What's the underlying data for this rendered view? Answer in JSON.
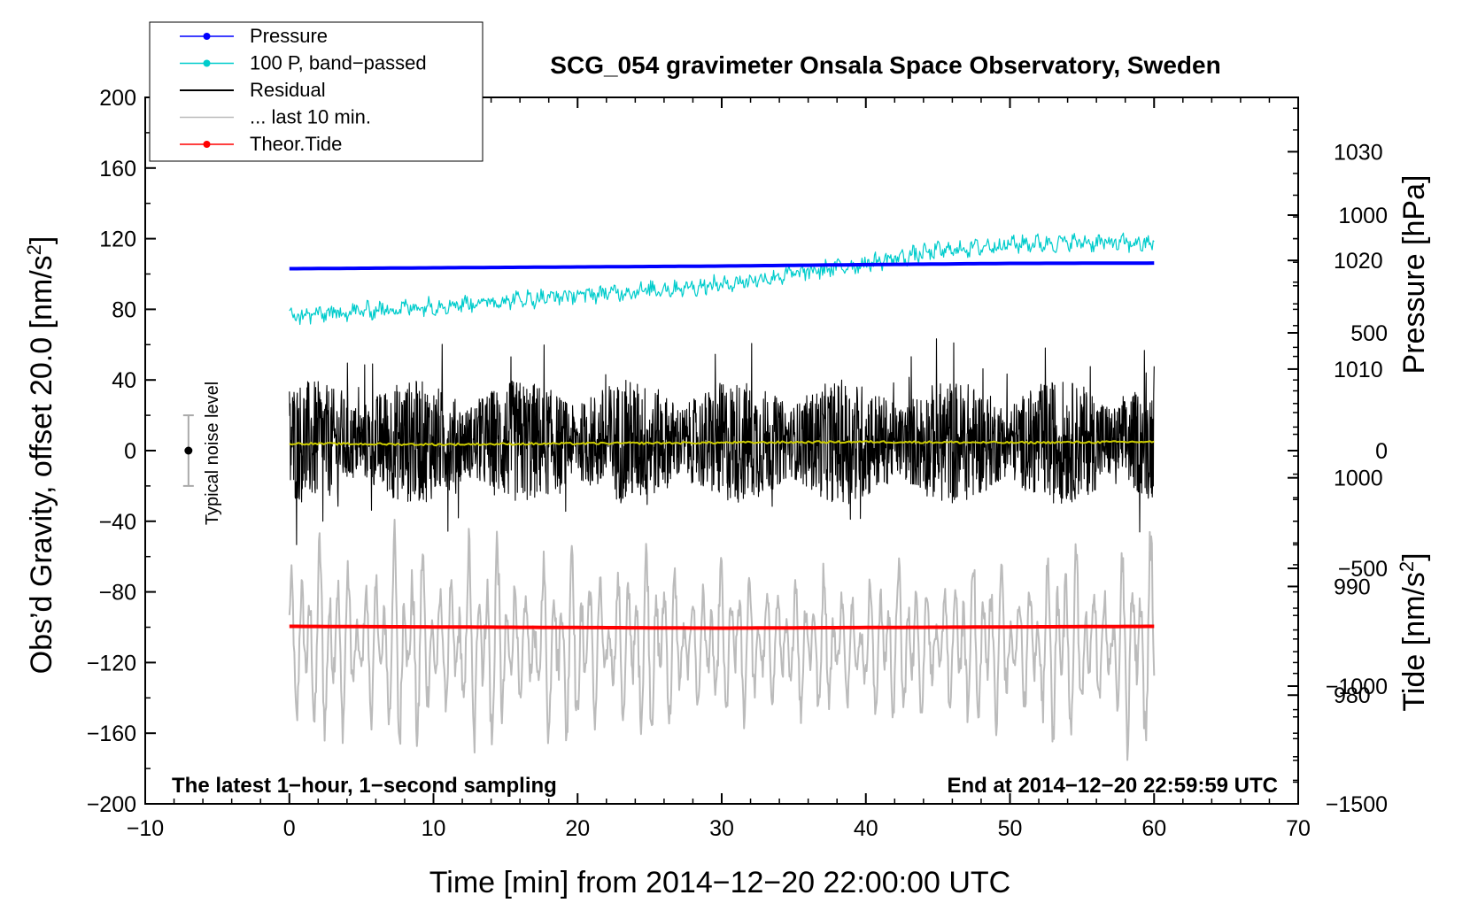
{
  "chart_data": {
    "type": "line",
    "title": "SCG_054 gravimeter Onsala Space Observatory, Sweden",
    "xlabel": "Time [min] from 2014−12−20 22:00:00 UTC",
    "ylabel_left": "Obs’d Gravity, offset 20.0 [nm/s",
    "ylabel_left_sup": "2",
    "ylabel_left_close": "]",
    "ylabel_right_pressure": "Pressure [hPa]",
    "ylabel_right_tide": "Tide [nm/s",
    "ylabel_right_tide_sup": "2",
    "ylabel_right_tide_close": "]",
    "xlim": [
      -10,
      70
    ],
    "ylim_left": [
      -200,
      200
    ],
    "pressure_ylim": [
      970,
      1035
    ],
    "tide_ylim": [
      -1500,
      1500
    ],
    "x_ticks": [
      -10,
      0,
      10,
      20,
      30,
      40,
      50,
      60,
      70
    ],
    "x_tick_labels": [
      "−10",
      "0",
      "10",
      "20",
      "30",
      "40",
      "50",
      "60",
      "70"
    ],
    "y_ticks_left": [
      -200,
      -160,
      -120,
      -80,
      -40,
      0,
      40,
      80,
      120,
      160,
      200
    ],
    "y_tick_labels_left": [
      "−200",
      "−160",
      "−120",
      "−80",
      "−40",
      "0",
      "40",
      "80",
      "120",
      "160",
      "200"
    ],
    "pressure_ticks": [
      980,
      990,
      1000,
      1010,
      1020,
      1030
    ],
    "pressure_tick_labels": [
      "980",
      "990",
      "1000",
      "1010",
      "1020",
      "1030"
    ],
    "tide_ticks": [
      -1500,
      -1000,
      -500,
      0,
      500,
      1000
    ],
    "tide_tick_labels": [
      "−1500",
      "−1000",
      "−500",
      "0",
      "500",
      "1000"
    ],
    "legend": [
      {
        "label": "Pressure",
        "color": "#0000ff",
        "marker": true
      },
      {
        "label": "100 P, band−passed",
        "color": "#00cccc",
        "marker": true
      },
      {
        "label": "Residual",
        "color": "#000000",
        "marker": false
      },
      {
        "label": "... last 10 min.",
        "color": "#bbbbbb",
        "marker": false
      },
      {
        "label": "Theor.Tide",
        "color": "#ff0000",
        "marker": true
      }
    ],
    "annotations": {
      "bottom_left": "The latest 1−hour, 1−second sampling",
      "bottom_right": "End at 2014−12−20 22:59:59 UTC",
      "noise_label": "Typical noise level"
    },
    "noise_bar": {
      "x": -7,
      "center": 0,
      "low": -20,
      "high": 20
    },
    "series": [
      {
        "name": "Pressure",
        "axis": "left",
        "color": "#0000ff",
        "x": [
          0,
          10,
          20,
          30,
          40,
          50,
          60
        ],
        "values": [
          103,
          103.5,
          104,
          104.5,
          105.3,
          106,
          106.2
        ]
      },
      {
        "name": "100 P, band−passed",
        "axis": "left",
        "color": "#00cccc",
        "x": [
          0,
          10,
          20,
          30,
          40,
          45,
          50,
          55,
          60
        ],
        "values": [
          76,
          82,
          88,
          94,
          106,
          113,
          117,
          118,
          117
        ],
        "noise_amplitude": 4
      },
      {
        "name": "Residual",
        "axis": "left",
        "color": "#000000",
        "x": [
          0,
          60
        ],
        "values": [
          5,
          5
        ],
        "noise_amplitude": 32
      },
      {
        "name": "Residual smoothed",
        "axis": "left",
        "color": "#cccc00",
        "x": [
          0,
          10,
          20,
          30,
          40,
          50,
          60
        ],
        "values": [
          4,
          3.5,
          4,
          4.5,
          5,
          4.5,
          5
        ]
      },
      {
        "name": "... last 10 min.",
        "axis": "left",
        "color": "#bbbbbb",
        "x": [
          0,
          60
        ],
        "values": [
          -110,
          -110
        ],
        "noise_amplitude": 55
      },
      {
        "name": "Theor.Tide",
        "axis": "left",
        "color": "#ff0000",
        "x": [
          0,
          30,
          60
        ],
        "values": [
          -99.5,
          -100.5,
          -99.5
        ]
      }
    ]
  }
}
